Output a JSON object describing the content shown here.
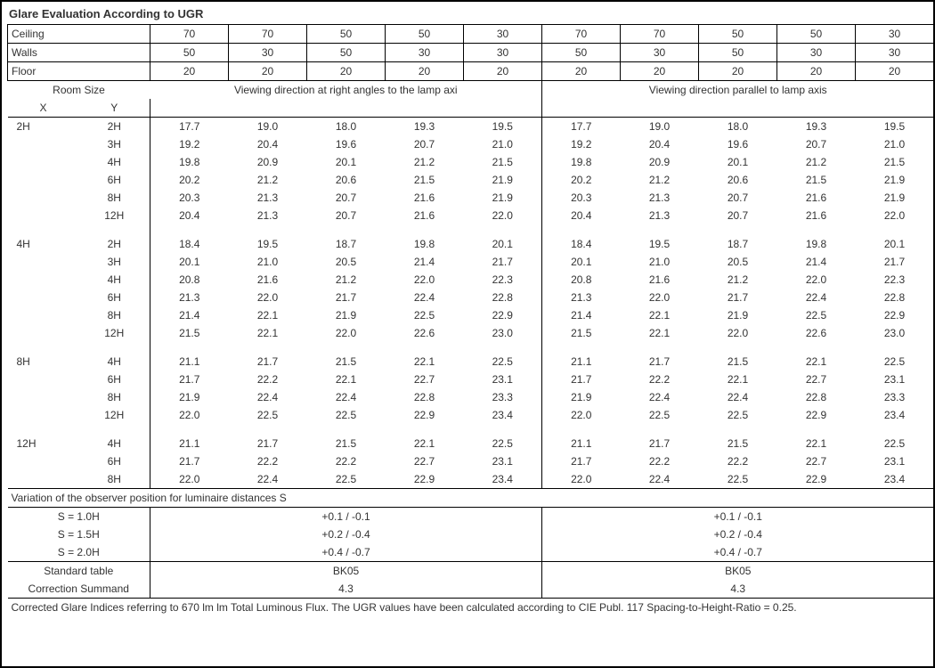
{
  "title": "Glare Evaluation According to UGR",
  "headers": {
    "ceiling_label": "Ceiling",
    "walls_label": "Walls",
    "floor_label": "Floor",
    "ceiling": [
      "70",
      "70",
      "50",
      "50",
      "30",
      "70",
      "70",
      "50",
      "50",
      "30"
    ],
    "walls": [
      "50",
      "30",
      "50",
      "30",
      "30",
      "50",
      "30",
      "50",
      "30",
      "30"
    ],
    "floor": [
      "20",
      "20",
      "20",
      "20",
      "20",
      "20",
      "20",
      "20",
      "20",
      "20"
    ]
  },
  "roomsize_label": "Room Size",
  "roomsize_x": "X",
  "roomsize_y": "Y",
  "axis_left": "Viewing direction at right angles to the lamp axi",
  "axis_right": "Viewing direction parallel to lamp axis",
  "groups": [
    {
      "x": "2H",
      "rows": [
        {
          "y": "2H",
          "l": [
            "17.7",
            "19.0",
            "18.0",
            "19.3",
            "19.5"
          ],
          "r": [
            "17.7",
            "19.0",
            "18.0",
            "19.3",
            "19.5"
          ]
        },
        {
          "y": "3H",
          "l": [
            "19.2",
            "20.4",
            "19.6",
            "20.7",
            "21.0"
          ],
          "r": [
            "19.2",
            "20.4",
            "19.6",
            "20.7",
            "21.0"
          ]
        },
        {
          "y": "4H",
          "l": [
            "19.8",
            "20.9",
            "20.1",
            "21.2",
            "21.5"
          ],
          "r": [
            "19.8",
            "20.9",
            "20.1",
            "21.2",
            "21.5"
          ]
        },
        {
          "y": "6H",
          "l": [
            "20.2",
            "21.2",
            "20.6",
            "21.5",
            "21.9"
          ],
          "r": [
            "20.2",
            "21.2",
            "20.6",
            "21.5",
            "21.9"
          ]
        },
        {
          "y": "8H",
          "l": [
            "20.3",
            "21.3",
            "20.7",
            "21.6",
            "21.9"
          ],
          "r": [
            "20.3",
            "21.3",
            "20.7",
            "21.6",
            "21.9"
          ]
        },
        {
          "y": "12H",
          "l": [
            "20.4",
            "21.3",
            "20.7",
            "21.6",
            "22.0"
          ],
          "r": [
            "20.4",
            "21.3",
            "20.7",
            "21.6",
            "22.0"
          ]
        }
      ]
    },
    {
      "x": "4H",
      "rows": [
        {
          "y": "2H",
          "l": [
            "18.4",
            "19.5",
            "18.7",
            "19.8",
            "20.1"
          ],
          "r": [
            "18.4",
            "19.5",
            "18.7",
            "19.8",
            "20.1"
          ]
        },
        {
          "y": "3H",
          "l": [
            "20.1",
            "21.0",
            "20.5",
            "21.4",
            "21.7"
          ],
          "r": [
            "20.1",
            "21.0",
            "20.5",
            "21.4",
            "21.7"
          ]
        },
        {
          "y": "4H",
          "l": [
            "20.8",
            "21.6",
            "21.2",
            "22.0",
            "22.3"
          ],
          "r": [
            "20.8",
            "21.6",
            "21.2",
            "22.0",
            "22.3"
          ]
        },
        {
          "y": "6H",
          "l": [
            "21.3",
            "22.0",
            "21.7",
            "22.4",
            "22.8"
          ],
          "r": [
            "21.3",
            "22.0",
            "21.7",
            "22.4",
            "22.8"
          ]
        },
        {
          "y": "8H",
          "l": [
            "21.4",
            "22.1",
            "21.9",
            "22.5",
            "22.9"
          ],
          "r": [
            "21.4",
            "22.1",
            "21.9",
            "22.5",
            "22.9"
          ]
        },
        {
          "y": "12H",
          "l": [
            "21.5",
            "22.1",
            "22.0",
            "22.6",
            "23.0"
          ],
          "r": [
            "21.5",
            "22.1",
            "22.0",
            "22.6",
            "23.0"
          ]
        }
      ]
    },
    {
      "x": "8H",
      "rows": [
        {
          "y": "4H",
          "l": [
            "21.1",
            "21.7",
            "21.5",
            "22.1",
            "22.5"
          ],
          "r": [
            "21.1",
            "21.7",
            "21.5",
            "22.1",
            "22.5"
          ]
        },
        {
          "y": "6H",
          "l": [
            "21.7",
            "22.2",
            "22.1",
            "22.7",
            "23.1"
          ],
          "r": [
            "21.7",
            "22.2",
            "22.1",
            "22.7",
            "23.1"
          ]
        },
        {
          "y": "8H",
          "l": [
            "21.9",
            "22.4",
            "22.4",
            "22.8",
            "23.3"
          ],
          "r": [
            "21.9",
            "22.4",
            "22.4",
            "22.8",
            "23.3"
          ]
        },
        {
          "y": "12H",
          "l": [
            "22.0",
            "22.5",
            "22.5",
            "22.9",
            "23.4"
          ],
          "r": [
            "22.0",
            "22.5",
            "22.5",
            "22.9",
            "23.4"
          ]
        }
      ]
    },
    {
      "x": "12H",
      "rows": [
        {
          "y": "4H",
          "l": [
            "21.1",
            "21.7",
            "21.5",
            "22.1",
            "22.5"
          ],
          "r": [
            "21.1",
            "21.7",
            "21.5",
            "22.1",
            "22.5"
          ]
        },
        {
          "y": "6H",
          "l": [
            "21.7",
            "22.2",
            "22.2",
            "22.7",
            "23.1"
          ],
          "r": [
            "21.7",
            "22.2",
            "22.2",
            "22.7",
            "23.1"
          ]
        },
        {
          "y": "8H",
          "l": [
            "22.0",
            "22.4",
            "22.5",
            "22.9",
            "23.4"
          ],
          "r": [
            "22.0",
            "22.4",
            "22.5",
            "22.9",
            "23.4"
          ]
        }
      ]
    }
  ],
  "variation_title": "Variation of the observer position for luminaire distances S",
  "variation_rows": [
    {
      "s": "S = 1.0H",
      "l": "+0.1 / -0.1",
      "r": "+0.1 / -0.1"
    },
    {
      "s": "S = 1.5H",
      "l": "+0.2 / -0.4",
      "r": "+0.2 / -0.4"
    },
    {
      "s": "S = 2.0H",
      "l": "+0.4 / -0.7",
      "r": "+0.4 / -0.7"
    }
  ],
  "standard_table_label": "Standard table",
  "standard_table_l": "BK05",
  "standard_table_r": "BK05",
  "correction_label": "Correction Summand",
  "correction_l": "4.3",
  "correction_r": "4.3",
  "footnote": "Corrected Glare Indices referring to 670 lm lm Total Luminous Flux. The UGR values have been calculated according to CIE Publ. 117    Spacing-to-Height-Ratio = 0.25."
}
